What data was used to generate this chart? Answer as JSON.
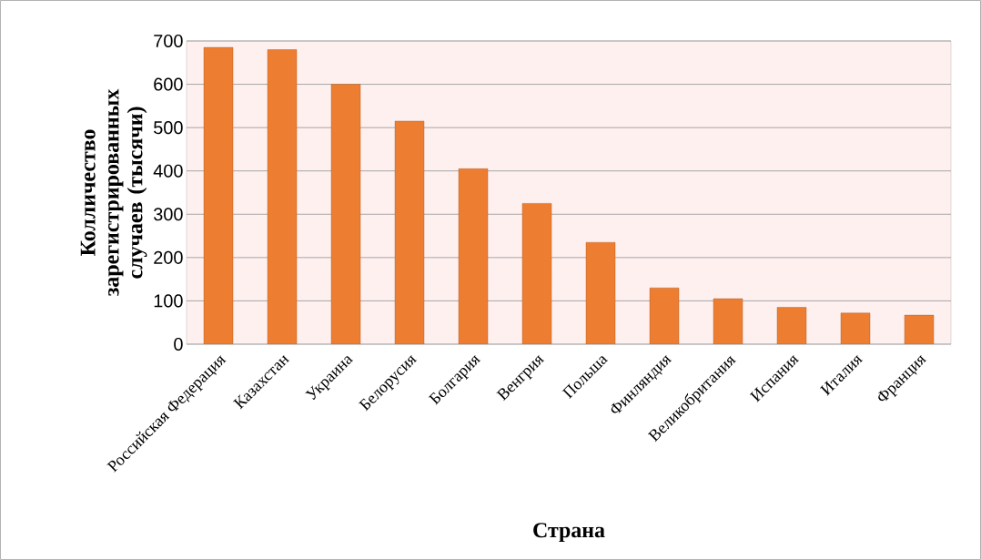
{
  "chart_data": {
    "type": "bar",
    "categories": [
      "Российская Федерация",
      "Казахстан",
      "Украина",
      "Белорусия",
      "Болгария",
      "Венгрия",
      "Польша",
      "Финляндия",
      "Великобритания",
      "Испания",
      "Италия",
      "Франция"
    ],
    "values": [
      685,
      680,
      600,
      515,
      405,
      325,
      235,
      130,
      105,
      85,
      72,
      67
    ],
    "color": "#ed7d31",
    "xlabel": "Страна",
    "ylabel": "Колличество зарегистрированных случаев (тысячи)",
    "ylim": [
      0,
      700
    ],
    "yticks": [
      0,
      100,
      200,
      300,
      400,
      500,
      600,
      700
    ],
    "grid": "y"
  }
}
